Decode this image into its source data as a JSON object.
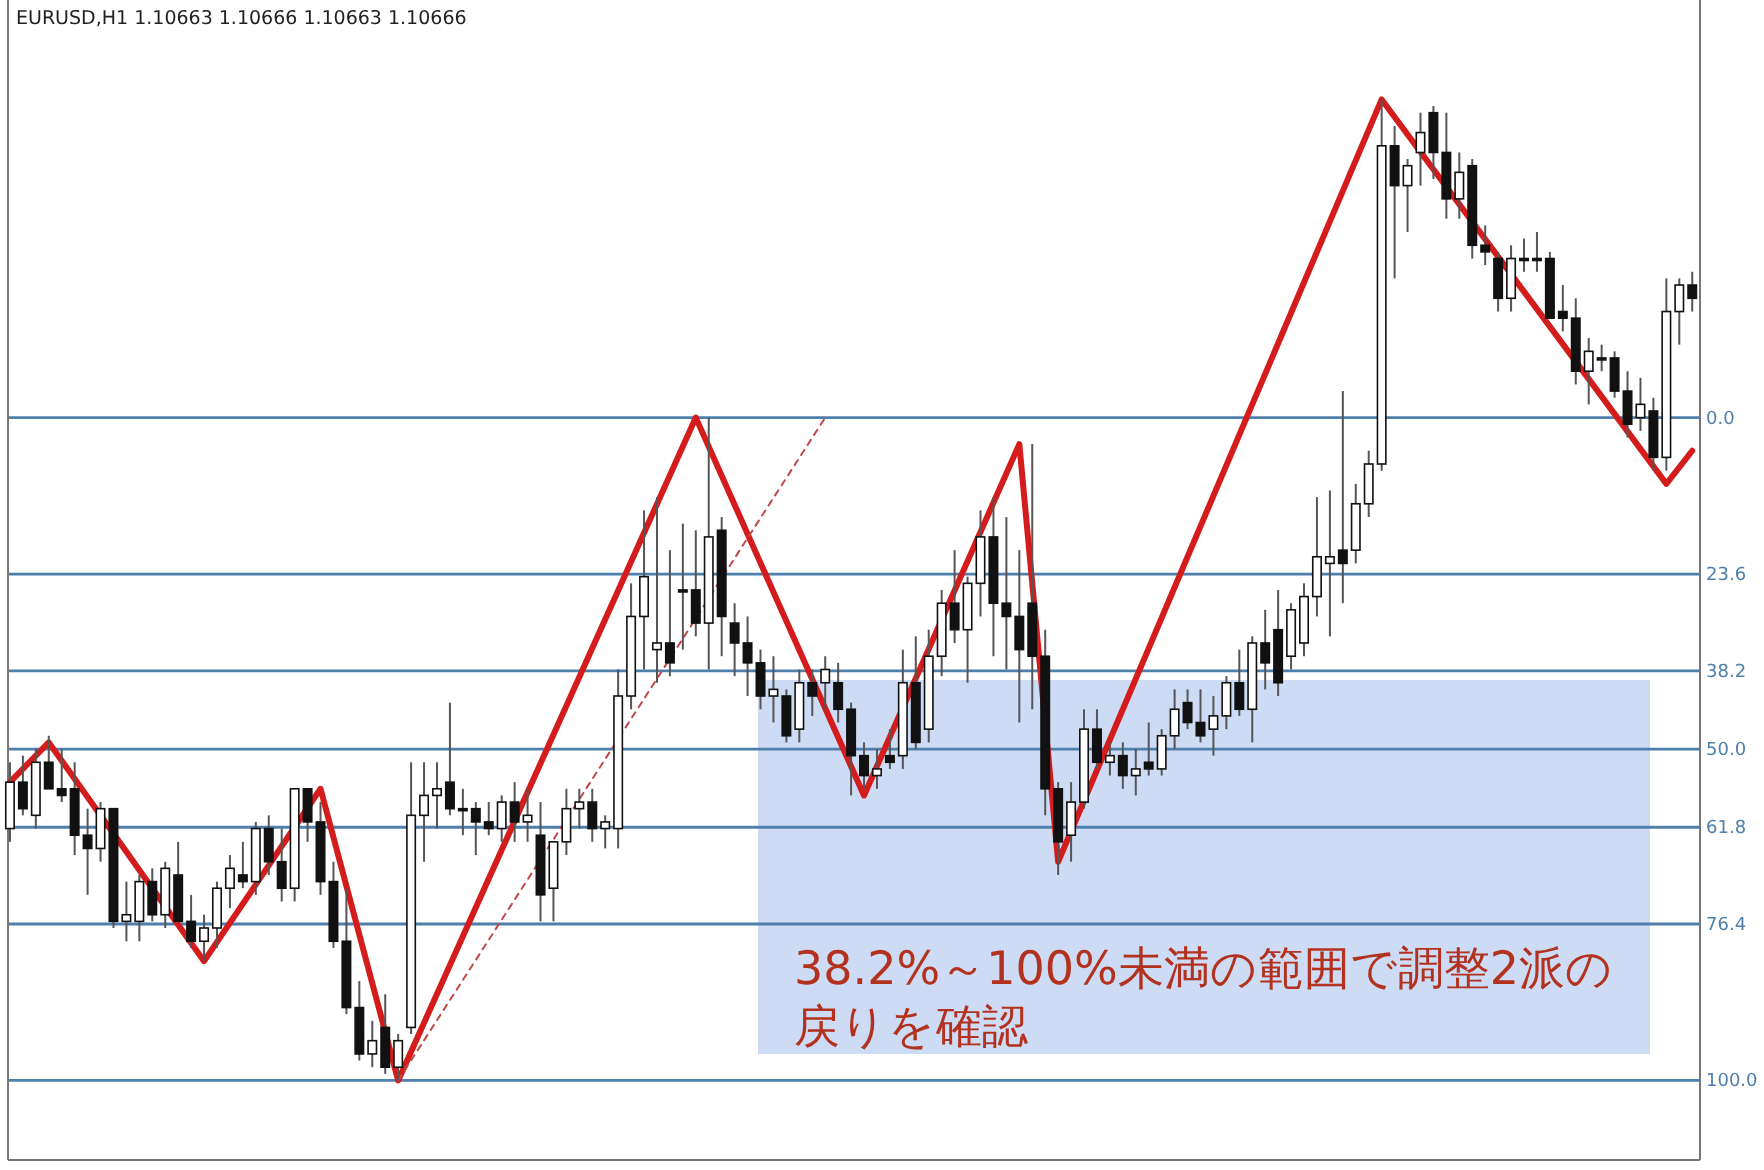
{
  "chart_data": {
    "type": "candlestick",
    "title": "EURUSD,H1  1.10663 1.10666 1.10663 1.10666",
    "categories": [
      null,
      null,
      null,
      null,
      null,
      null,
      null,
      null,
      null,
      null,
      null,
      null,
      null,
      null,
      null,
      null,
      null,
      null,
      null,
      null,
      null,
      null,
      null,
      null,
      null,
      null,
      null,
      null,
      null,
      null,
      null,
      null,
      null,
      null,
      null,
      null,
      null,
      null,
      null,
      null,
      null,
      null,
      null,
      null,
      null,
      null,
      null,
      null,
      null,
      null,
      null,
      null,
      null,
      null,
      null,
      null,
      null,
      null,
      null,
      null,
      null,
      null,
      null,
      null,
      null,
      null,
      null,
      null,
      null,
      null,
      null,
      null,
      null,
      null,
      null,
      null,
      null,
      null,
      null,
      null,
      null,
      null,
      null,
      null,
      null,
      null,
      null,
      null,
      null,
      null,
      null,
      null,
      null,
      null,
      null,
      null,
      null,
      null,
      null,
      null,
      null,
      null,
      null,
      null,
      null,
      null,
      null,
      null,
      null,
      null,
      null,
      null,
      null,
      null,
      null,
      null,
      null,
      null,
      null,
      null,
      null,
      null,
      null,
      null,
      null,
      null,
      null,
      null,
      null,
      null,
      null
    ],
    "ohlc": [
      [
        62,
        64,
        52,
        55
      ],
      [
        55,
        60,
        51,
        59
      ],
      [
        60,
        62,
        50,
        52
      ],
      [
        52,
        56,
        48,
        56
      ],
      [
        56,
        58,
        50,
        57
      ],
      [
        56,
        66,
        52,
        63
      ],
      [
        63,
        72,
        59,
        65
      ],
      [
        65,
        67,
        58,
        59
      ],
      [
        59,
        77,
        59,
        76
      ],
      [
        76,
        79,
        70,
        75
      ],
      [
        76,
        79,
        69,
        70
      ],
      [
        70,
        76,
        68,
        75
      ],
      [
        75,
        77,
        67,
        68
      ],
      [
        69,
        76,
        64,
        76
      ],
      [
        76,
        80,
        72,
        79
      ],
      [
        79,
        82,
        75,
        77
      ],
      [
        77,
        80,
        70,
        71
      ],
      [
        71,
        74,
        66,
        68
      ],
      [
        69,
        71,
        64,
        70
      ],
      [
        70,
        72,
        61,
        62
      ],
      [
        62,
        69,
        60,
        67
      ],
      [
        67,
        73,
        62,
        71
      ],
      [
        71,
        73,
        56,
        56
      ],
      [
        56,
        64,
        56,
        61
      ],
      [
        61,
        72,
        58,
        70
      ],
      [
        70,
        80,
        67,
        79
      ],
      [
        79,
        90,
        71,
        89
      ],
      [
        89,
        97,
        85,
        96
      ],
      [
        96,
        98,
        91,
        94
      ],
      [
        92,
        99,
        87,
        98
      ],
      [
        98,
        100,
        93,
        94
      ],
      [
        92,
        93,
        52,
        60
      ],
      [
        60,
        67,
        52,
        57
      ],
      [
        57,
        62,
        52,
        56
      ],
      [
        55,
        60,
        43,
        59
      ],
      [
        59,
        63,
        56,
        59
      ],
      [
        59,
        66,
        58,
        61
      ],
      [
        61,
        63,
        58,
        62
      ],
      [
        62,
        64,
        57,
        58
      ],
      [
        58,
        64,
        55,
        61
      ],
      [
        61,
        64,
        56,
        60
      ],
      [
        63,
        76,
        58,
        72
      ],
      [
        71,
        76,
        64,
        64
      ],
      [
        64,
        66,
        56,
        59
      ],
      [
        59,
        62,
        56,
        58
      ],
      [
        58,
        64,
        56,
        62
      ],
      [
        62,
        65,
        60,
        61
      ],
      [
        62,
        65,
        38,
        42
      ],
      [
        42,
        44,
        25,
        30
      ],
      [
        30,
        38,
        14,
        24
      ],
      [
        35,
        40,
        12,
        34
      ],
      [
        34,
        39,
        20,
        37
      ],
      [
        26,
        35,
        16,
        26
      ],
      [
        26,
        33,
        17,
        31
      ],
      [
        31,
        38,
        0,
        18
      ],
      [
        17,
        36,
        15,
        30
      ],
      [
        31,
        39,
        28,
        34
      ],
      [
        34,
        42,
        30,
        37
      ],
      [
        37,
        44,
        35,
        42
      ],
      [
        42,
        46,
        36,
        41
      ],
      [
        42,
        49,
        41,
        48
      ],
      [
        47,
        49,
        38,
        40
      ],
      [
        40,
        45,
        38,
        42
      ],
      [
        40,
        44,
        36,
        38
      ],
      [
        40,
        46,
        37,
        44
      ],
      [
        44,
        57,
        43,
        51
      ],
      [
        51,
        56,
        49,
        54
      ],
      [
        54,
        56,
        50,
        53
      ],
      [
        51,
        53,
        47,
        52
      ],
      [
        51,
        53,
        35,
        40
      ],
      [
        40,
        50,
        33,
        49
      ],
      [
        47,
        49,
        32,
        36
      ],
      [
        36,
        39,
        26,
        28
      ],
      [
        28,
        34,
        20,
        32
      ],
      [
        32,
        40,
        24,
        25
      ],
      [
        25,
        30,
        14,
        18
      ],
      [
        18,
        36,
        12,
        28
      ],
      [
        28,
        38,
        15,
        30
      ],
      [
        30,
        46,
        20,
        35
      ],
      [
        28,
        44,
        4,
        36
      ],
      [
        36,
        60,
        32,
        56
      ],
      [
        56,
        69,
        55,
        64
      ],
      [
        63,
        67,
        55,
        58
      ],
      [
        58,
        59,
        44,
        47
      ],
      [
        47,
        53,
        44,
        52
      ],
      [
        52,
        54,
        49,
        51
      ],
      [
        51,
        56,
        49,
        54
      ],
      [
        54,
        57,
        50,
        53
      ],
      [
        52,
        54,
        46,
        53
      ],
      [
        53,
        54,
        47,
        48
      ],
      [
        48,
        50,
        41,
        44
      ],
      [
        43,
        47,
        41,
        46
      ],
      [
        46,
        49,
        41,
        48
      ],
      [
        47,
        51,
        42,
        45
      ],
      [
        45,
        47,
        39,
        40
      ],
      [
        40,
        45,
        35,
        44
      ],
      [
        44,
        49,
        33,
        34
      ],
      [
        34,
        41,
        29,
        37
      ],
      [
        32,
        42,
        26,
        40
      ],
      [
        36,
        38,
        28,
        29
      ],
      [
        34,
        36,
        25,
        27
      ],
      [
        27,
        30,
        12,
        21
      ],
      [
        22,
        33,
        11,
        21
      ],
      [
        20,
        28,
        -4,
        22
      ],
      [
        20,
        22,
        10,
        13
      ],
      [
        13,
        15,
        5,
        7
      ],
      [
        7,
        8,
        -48,
        -41
      ],
      [
        -41,
        -21,
        -44,
        -35
      ],
      [
        -35,
        -28,
        -39,
        -38
      ],
      [
        -40,
        -35,
        -46,
        -43
      ],
      [
        -46,
        -36,
        -47,
        -40
      ],
      [
        -40,
        -30,
        -46,
        -33
      ],
      [
        -33,
        -30,
        -40,
        -37
      ],
      [
        -38,
        -24,
        -39,
        -26
      ],
      [
        -26,
        -23,
        -29,
        -25
      ],
      [
        -24,
        -16,
        -25,
        -18
      ],
      [
        -18,
        -16,
        -26,
        -24
      ],
      [
        -24,
        -22,
        -27,
        -24
      ],
      [
        -24,
        -22,
        -28,
        -24
      ],
      [
        -24,
        -15,
        -25,
        -15
      ],
      [
        -16,
        -13,
        -20,
        -15
      ],
      [
        -15,
        -5,
        -18,
        -7
      ],
      [
        -7,
        -2,
        -12,
        -10
      ],
      [
        -9,
        -7,
        -11,
        -9
      ],
      [
        -9,
        -3,
        -10,
        -4
      ],
      [
        -4,
        3,
        -7,
        1
      ],
      [
        0,
        2,
        -6,
        -2
      ],
      [
        -1,
        8,
        -3,
        6
      ],
      [
        6,
        8,
        -21,
        -16
      ],
      [
        -16,
        -11,
        -21,
        -20
      ],
      [
        -20,
        -16,
        -22,
        -18
      ]
    ],
    "series": [
      {
        "type": "line",
        "color": "#d41c1c",
        "values": [
          55,
          null,
          null,
          49,
          null,
          null,
          null,
          null,
          null,
          null,
          null,
          null,
          null,
          null,
          null,
          82,
          null,
          null,
          null,
          null,
          null,
          null,
          null,
          null,
          56,
          null,
          null,
          null,
          null,
          null,
          100,
          null,
          null,
          null,
          null,
          null,
          null,
          null,
          null,
          null,
          null,
          null,
          null,
          null,
          null,
          null,
          null,
          null,
          null,
          null,
          null,
          null,
          null,
          0,
          null,
          null,
          null,
          null,
          null,
          null,
          null,
          null,
          null,
          null,
          null,
          null,
          57,
          null,
          null,
          null,
          null,
          null,
          null,
          null,
          null,
          null,
          null,
          null,
          4,
          null,
          null,
          67,
          null,
          null,
          null,
          null,
          null,
          null,
          null,
          null,
          null,
          null,
          null,
          null,
          null,
          null,
          null,
          null,
          null,
          null,
          null,
          null,
          null,
          null,
          null,
          null,
          -48,
          null,
          null,
          null,
          null,
          null,
          null,
          null,
          null,
          null,
          null,
          null,
          null,
          null,
          null,
          null,
          null,
          null,
          null,
          null,
          null,
          null,
          10,
          null,
          5
        ]
      },
      {
        "type": "line",
        "color": "#c04848",
        "line_style": "dashed",
        "values": [
          null,
          null,
          null,
          null,
          null,
          null,
          null,
          null,
          null,
          null,
          null,
          null,
          null,
          null,
          null,
          null,
          null,
          null,
          null,
          null,
          null,
          null,
          null,
          null,
          null,
          null,
          null,
          null,
          null,
          null,
          100,
          null,
          null,
          null,
          null,
          null,
          null,
          null,
          null,
          null,
          null,
          null,
          null,
          null,
          null,
          null,
          null,
          null,
          null,
          null,
          null,
          null,
          null,
          null,
          null,
          null,
          null,
          null,
          null,
          null,
          null,
          null,
          null,
          0,
          null,
          null,
          null,
          null,
          null,
          null,
          null,
          null,
          null,
          null,
          null,
          null,
          null,
          null,
          null,
          null,
          null,
          null,
          null,
          null,
          null,
          null,
          null,
          null,
          null,
          null,
          null,
          null,
          null,
          null,
          null,
          null,
          null,
          null,
          null,
          null,
          null,
          null,
          null,
          null,
          null,
          null,
          null,
          null,
          null,
          null,
          null,
          null,
          null,
          null,
          null,
          null,
          null,
          null,
          null,
          null,
          null,
          null,
          null,
          null,
          null,
          null,
          null,
          null,
          null,
          null,
          null
        ]
      }
    ],
    "ylim": [
      112,
      -63
    ],
    "yticks": [
      {
        "value": 0,
        "label": "0.0"
      },
      23.6,
      38.2,
      {
        "value": 50,
        "label": "50.0"
      },
      61.8,
      76.4,
      {
        "value": 100,
        "label": "100.0"
      }
    ],
    "grid": "y",
    "tick_labels": "y",
    "annotations": [
      "38.2%～100%未満の範囲で調整2派の戻りを確認"
    ]
  }
}
